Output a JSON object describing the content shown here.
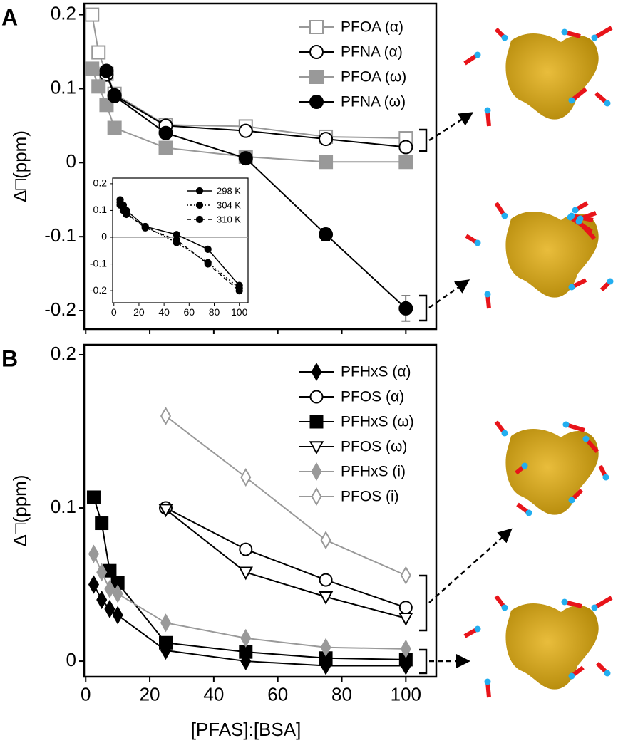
{
  "chart_data": [
    {
      "type": "line",
      "panel": "A",
      "ylabel": "Δ□(ppm)",
      "xlim": [
        -0.5,
        109.5
      ],
      "ylim": [
        -0.225,
        0.215
      ],
      "xticks": [
        0,
        20,
        40,
        60,
        80,
        100
      ],
      "xtick_labels": false,
      "yticks": [
        -0.2,
        -0.1,
        0,
        0.1,
        0.2
      ],
      "legend": "upper right",
      "series": [
        {
          "name": "PFOA (α)",
          "color": "#999999",
          "marker": "square",
          "marker_fill": "white",
          "x": [
            2,
            4,
            6.5,
            9,
            25,
            50,
            75,
            100
          ],
          "values": [
            0.2,
            0.149,
            0.12,
            0.093,
            0.051,
            0.049,
            0.035,
            0.033
          ]
        },
        {
          "name": "PFNA (α)",
          "color": "#000000",
          "marker": "circle",
          "marker_fill": "white",
          "x": [
            6.5,
            9,
            25,
            50,
            75,
            100
          ],
          "values": [
            0.119,
            0.091,
            0.05,
            0.043,
            0.032,
            0.021
          ]
        },
        {
          "name": "PFOA (ω)",
          "color": "#999999",
          "marker": "square",
          "marker_fill": "#999999",
          "x": [
            2,
            4,
            6.5,
            9,
            25,
            50,
            75,
            100
          ],
          "values": [
            0.127,
            0.103,
            0.078,
            0.047,
            0.02,
            0.008,
            0.001,
            0.001
          ]
        },
        {
          "name": "PFNA (ω)",
          "color": "#000000",
          "marker": "circle",
          "marker_fill": "#000000",
          "x": [
            6.5,
            9,
            25,
            50,
            75,
            100
          ],
          "values": [
            0.124,
            0.09,
            0.04,
            0.006,
            -0.097,
            -0.197
          ],
          "errors": [
            null,
            null,
            null,
            0.004,
            0.008,
            0.017
          ]
        }
      ]
    },
    {
      "type": "line",
      "inset": true,
      "xlim": [
        -1,
        107
      ],
      "ylim": [
        -0.245,
        0.221
      ],
      "xticks": [
        0,
        20,
        40,
        60,
        80,
        100
      ],
      "yticks": [
        -0.2,
        -0.1,
        0,
        0.1,
        0.2
      ],
      "zero_line": true,
      "zero_line_color": "#999999",
      "legend": "upper right",
      "series": [
        {
          "name": "298 K",
          "color": "#000000",
          "marker": "circle",
          "marker_fill": "#000000",
          "dash": "solid",
          "x": [
            5,
            7.5,
            10,
            25,
            50,
            75,
            100
          ],
          "values": [
            0.14,
            0.12,
            0.1,
            0.04,
            0.01,
            -0.045,
            -0.18
          ]
        },
        {
          "name": "304 K",
          "color": "#000000",
          "marker": "circle",
          "marker_fill": "#000000",
          "dash": "dotted",
          "x": [
            5,
            7.5,
            10,
            25,
            50,
            75,
            100
          ],
          "values": [
            0.13,
            0.11,
            0.085,
            0.04,
            -0.02,
            -0.095,
            -0.19
          ]
        },
        {
          "name": "310 K",
          "color": "#000000",
          "marker": "circle",
          "marker_fill": "#000000",
          "dash": "dashed",
          "x": [
            5,
            7.5,
            10,
            25,
            50,
            75,
            100
          ],
          "values": [
            0.12,
            0.1,
            0.09,
            0.035,
            -0.01,
            -0.1,
            -0.2
          ]
        }
      ]
    },
    {
      "type": "line",
      "panel": "B",
      "ylabel": "Δ□(ppm)",
      "xlabel": "[PFAS]:[BSA]",
      "xlim": [
        -0.5,
        109.5
      ],
      "ylim": [
        -0.0102,
        0.2065
      ],
      "xticks": [
        0,
        20,
        40,
        60,
        80,
        100
      ],
      "xtick_labels": true,
      "yticks": [
        0,
        0.1,
        0.2
      ],
      "legend": "upper right",
      "series": [
        {
          "name": "PFHxS (α)",
          "color": "#000000",
          "marker": "diamond",
          "marker_fill": "#000000",
          "x": [
            2.5,
            5,
            7.5,
            10,
            25,
            50,
            75,
            100
          ],
          "values": [
            0.05,
            0.04,
            0.034,
            0.03,
            0.007,
            0.0,
            -0.003,
            -0.003
          ]
        },
        {
          "name": "PFOS (α)",
          "color": "#000000",
          "marker": "circle",
          "marker_fill": "white",
          "x": [
            25,
            50,
            75,
            100
          ],
          "values": [
            0.1,
            0.073,
            0.053,
            0.035
          ]
        },
        {
          "name": "PFHxS (ω)",
          "color": "#000000",
          "marker": "square",
          "marker_fill": "#000000",
          "x": [
            2.5,
            5,
            7.5,
            10,
            25,
            50,
            75,
            100
          ],
          "values": [
            0.107,
            0.09,
            0.059,
            0.051,
            0.012,
            0.006,
            0.002,
            0.001
          ]
        },
        {
          "name": "PFOS (ω)",
          "color": "#000000",
          "marker": "triangle-down",
          "marker_fill": "white",
          "x": [
            25,
            50,
            75,
            100
          ],
          "values": [
            0.099,
            0.058,
            0.042,
            0.028
          ]
        },
        {
          "name": "PFHxS (i)",
          "color": "#999999",
          "marker": "diamond",
          "marker_fill": "#999999",
          "x": [
            2.5,
            5,
            7.5,
            10,
            25,
            50,
            75,
            100
          ],
          "values": [
            0.07,
            0.058,
            0.047,
            0.044,
            0.025,
            0.015,
            0.009,
            0.008
          ]
        },
        {
          "name": "PFOS (i)",
          "color": "#999999",
          "marker": "diamond",
          "marker_fill": "white",
          "x": [
            25,
            50,
            75,
            100
          ],
          "values": [
            0.16,
            0.12,
            0.079,
            0.056
          ]
        }
      ]
    }
  ]
}
